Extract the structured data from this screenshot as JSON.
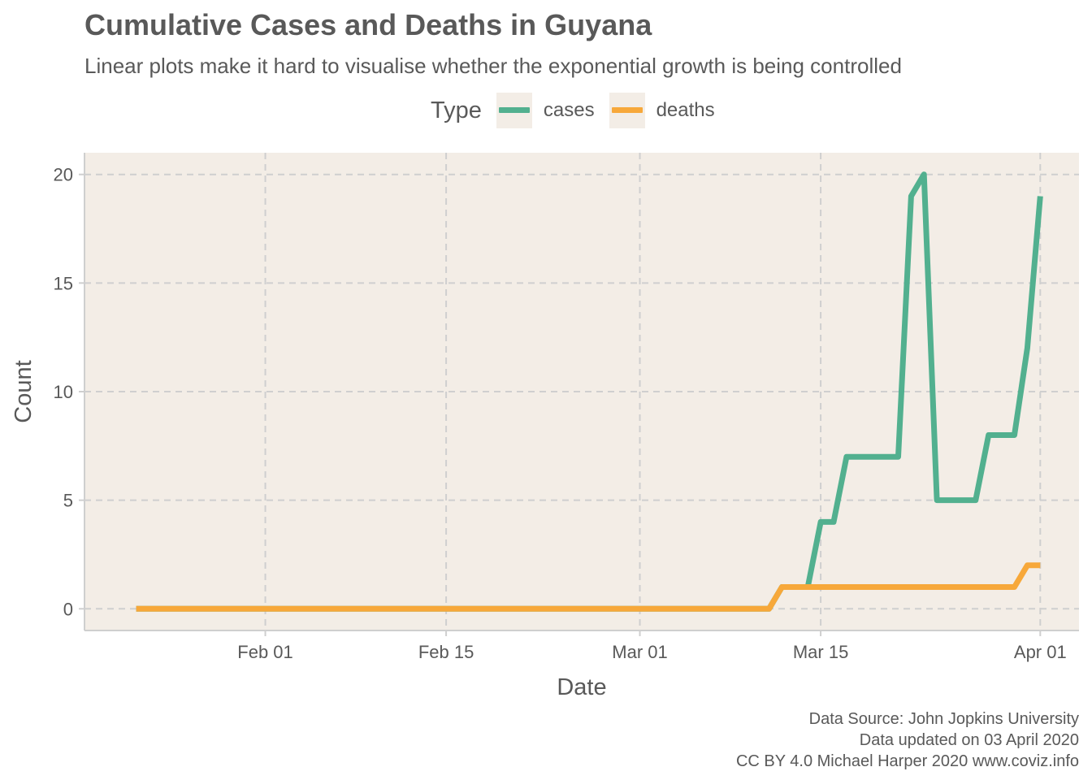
{
  "title": "Cumulative Cases and Deaths in Guyana",
  "subtitle": "Linear plots make it hard to visualise whether the exponential growth is being controlled",
  "legend": {
    "title": "Type",
    "items": [
      {
        "label": "cases",
        "color": "#52b08f"
      },
      {
        "label": "deaths",
        "color": "#f7a83a"
      }
    ]
  },
  "caption": {
    "line1": "Data Source: John Jopkins University",
    "line2": "Data updated on 03 April 2020",
    "line3": "CC BY 4.0 Michael Harper 2020 www.coviz.info"
  },
  "chart_data": {
    "type": "line",
    "title": "Cumulative Cases and Deaths in Guyana",
    "subtitle": "Linear plots make it hard to visualise whether the exponential growth is being controlled",
    "xlabel": "Date",
    "ylabel": "Count",
    "xlim": [
      "2020-01-18",
      "2020-04-04"
    ],
    "ylim": [
      -1,
      21
    ],
    "x_ticks": [
      {
        "date": "2020-02-01",
        "label": "Feb 01"
      },
      {
        "date": "2020-02-15",
        "label": "Feb 15"
      },
      {
        "date": "2020-03-01",
        "label": "Mar 01"
      },
      {
        "date": "2020-03-15",
        "label": "Mar 15"
      },
      {
        "date": "2020-04-01",
        "label": "Apr 01"
      }
    ],
    "y_ticks": [
      0,
      5,
      10,
      15,
      20
    ],
    "grid": "dashed major gridlines",
    "legend_position": "top",
    "panel_background": "#f3ede6",
    "series": [
      {
        "name": "cases",
        "color": "#52b08f",
        "points": [
          [
            "2020-01-22",
            0
          ],
          [
            "2020-03-11",
            0
          ],
          [
            "2020-03-12",
            1
          ],
          [
            "2020-03-14",
            1
          ],
          [
            "2020-03-15",
            4
          ],
          [
            "2020-03-16",
            4
          ],
          [
            "2020-03-17",
            7
          ],
          [
            "2020-03-21",
            7
          ],
          [
            "2020-03-22",
            19
          ],
          [
            "2020-03-23",
            20
          ],
          [
            "2020-03-24",
            5
          ],
          [
            "2020-03-27",
            5
          ],
          [
            "2020-03-28",
            8
          ],
          [
            "2020-03-30",
            8
          ],
          [
            "2020-03-31",
            12
          ],
          [
            "2020-04-01",
            19
          ]
        ]
      },
      {
        "name": "deaths",
        "color": "#f7a83a",
        "points": [
          [
            "2020-01-22",
            0
          ],
          [
            "2020-03-11",
            0
          ],
          [
            "2020-03-12",
            1
          ],
          [
            "2020-03-30",
            1
          ],
          [
            "2020-03-31",
            2
          ],
          [
            "2020-04-01",
            2
          ]
        ]
      }
    ]
  }
}
